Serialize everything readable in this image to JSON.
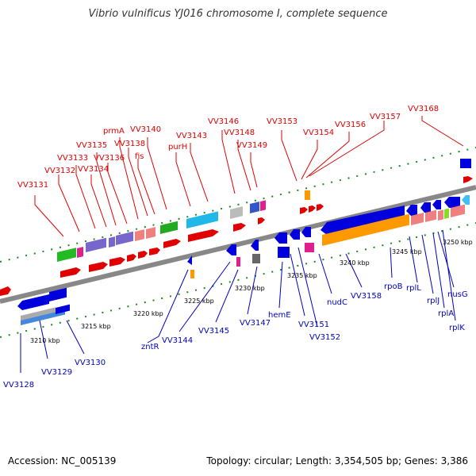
{
  "title": "Vibrio vulnificus YJ016 chromosome I, complete sequence",
  "accession": "Accession: NC_005139",
  "summary": "Topology: circular; Length: 3,354,505 bp; Genes: 3,386",
  "scale_labels": [
    "3210 kbp",
    "3215 kbp",
    "3220 kbp",
    "3225 kbp",
    "3230 kbp",
    "3235 kbp",
    "3240 kbp",
    "3245 kbp",
    "3250 kbp"
  ],
  "top_genes": [
    "VV3131",
    "VV3132",
    "VV3133",
    "VV3134",
    "VV3135",
    "VV3136",
    "prmA",
    "VV3138",
    "fis",
    "VV3140",
    "purH",
    "VV3143",
    "VV3146",
    "VV3148",
    "VV3149",
    "VV3153",
    "VV3154",
    "VV3156",
    "VV3157",
    "VV3168"
  ],
  "bottom_genes": [
    "VV3128",
    "VV3129",
    "VV3130",
    "zntR",
    "VV3144",
    "VV3145",
    "VV3147",
    "hemE",
    "VV3151",
    "VV3152",
    "nudC",
    "VV3158",
    "rpoB",
    "rplL",
    "rplJ",
    "rplA",
    "nusG",
    "rplK"
  ],
  "colors": {
    "top_label": "#e00000",
    "bottom_label": "#0000c0",
    "backbone": "#888888",
    "tick": "#1a8a1a"
  }
}
